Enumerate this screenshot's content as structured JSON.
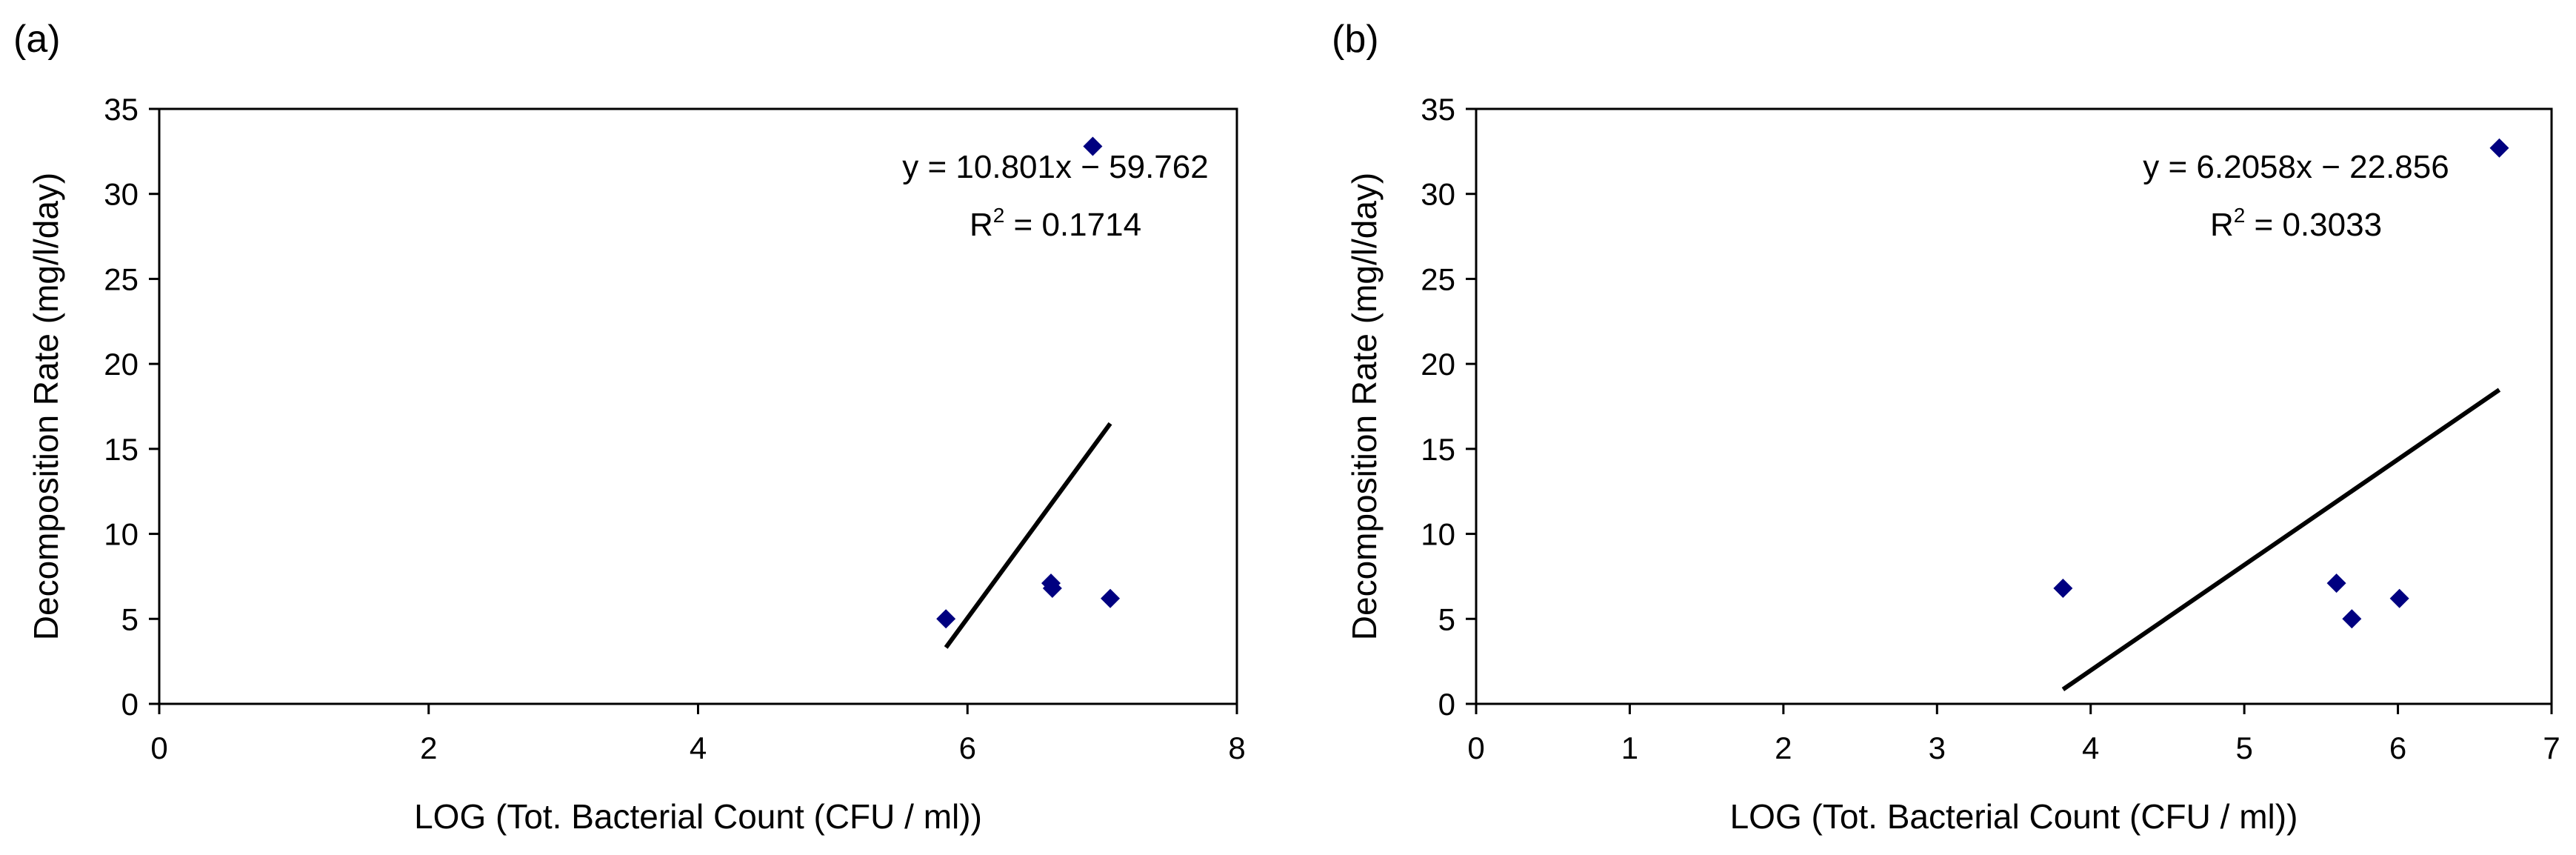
{
  "chart_data": [
    {
      "panel_label": "(a)",
      "type": "scatter",
      "xlabel": "LOG (Tot. Bacterial Count (CFU / ml))",
      "ylabel": "Decomposition Rate (mg/l/day)",
      "xlim": [
        0,
        8
      ],
      "ylim": [
        0,
        35
      ],
      "xticks": [
        0,
        2,
        4,
        6,
        8
      ],
      "yticks": [
        0,
        5,
        10,
        15,
        20,
        25,
        30,
        35
      ],
      "points": [
        {
          "x": 5.84,
          "y": 5.0
        },
        {
          "x": 6.62,
          "y": 7.1
        },
        {
          "x": 6.63,
          "y": 6.8
        },
        {
          "x": 7.06,
          "y": 6.2
        },
        {
          "x": 6.93,
          "y": 32.8
        }
      ],
      "trendline": {
        "slope": 10.801,
        "intercept": -59.762,
        "x_from": 5.84,
        "x_to": 7.06
      },
      "equation": "y = 10.801x − 59.762",
      "r2_label": "R",
      "r2_sup": "2",
      "r2_value": " = 0.1714",
      "marker_color": "#000080",
      "line_color": "#000000"
    },
    {
      "panel_label": "(b)",
      "type": "scatter",
      "xlabel": "LOG (Tot. Bacterial Count (CFU / ml))",
      "ylabel": "Decomposition Rate (mg/l/day)",
      "xlim": [
        0,
        7
      ],
      "ylim": [
        0,
        35
      ],
      "xticks": [
        0,
        1,
        2,
        3,
        4,
        5,
        6,
        7
      ],
      "yticks": [
        0,
        5,
        10,
        15,
        20,
        25,
        30,
        35
      ],
      "points": [
        {
          "x": 3.82,
          "y": 6.8
        },
        {
          "x": 5.6,
          "y": 7.1
        },
        {
          "x": 5.7,
          "y": 5.0
        },
        {
          "x": 6.01,
          "y": 6.2
        },
        {
          "x": 6.66,
          "y": 32.7
        }
      ],
      "trendline": {
        "slope": 6.2058,
        "intercept": -22.856,
        "x_from": 3.82,
        "x_to": 6.66
      },
      "equation": "y = 6.2058x − 22.856",
      "r2_label": "R",
      "r2_sup": "2",
      "r2_value": " = 0.3033",
      "marker_color": "#000080",
      "line_color": "#000000"
    }
  ]
}
